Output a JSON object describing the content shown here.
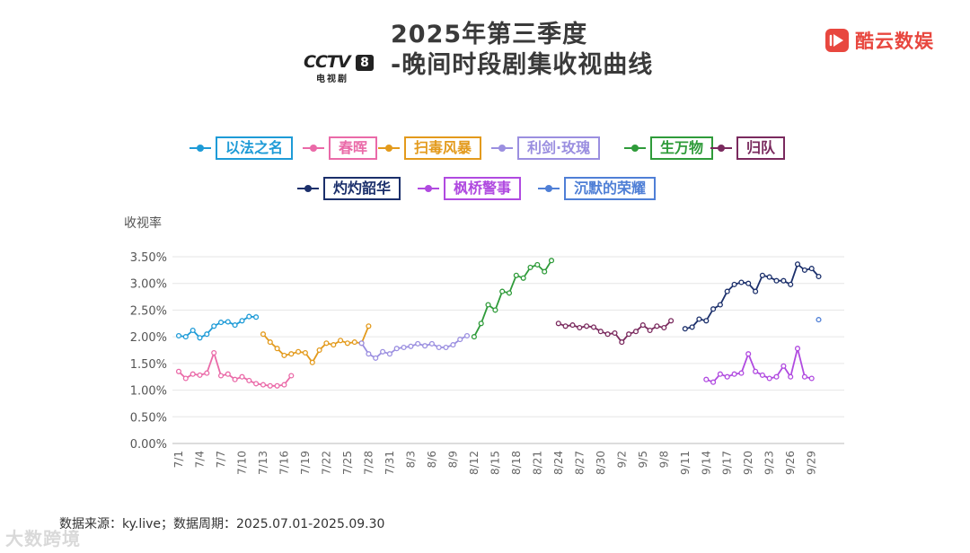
{
  "title": {
    "line1": "2025年第三季度",
    "line2": "-晚间时段剧集收视曲线"
  },
  "cctv_logo": {
    "text": "CCTV",
    "number": "8",
    "sub": "电视剧"
  },
  "brand": {
    "name": "酷云数娱",
    "color": "#e8473f",
    "icon": "play-logo-icon"
  },
  "source_note": "数据来源：ky.live；数据周期：2025.07.01-2025.09.30",
  "watermark": "大数跨境",
  "chart_data": {
    "type": "line",
    "ylabel": "收视率",
    "ylim": [
      0,
      3.5
    ],
    "yticks": [
      "0.00%",
      "0.50%",
      "1.00%",
      "1.50%",
      "2.00%",
      "2.50%",
      "3.00%",
      "3.50%"
    ],
    "xticks": [
      "7/1",
      "7/4",
      "7/7",
      "7/10",
      "7/13",
      "7/16",
      "7/19",
      "7/22",
      "7/25",
      "7/28",
      "7/31",
      "8/3",
      "8/6",
      "8/9",
      "8/12",
      "8/15",
      "8/18",
      "8/21",
      "8/24",
      "8/27",
      "8/30",
      "9/2",
      "9/5",
      "9/8",
      "9/11",
      "9/14",
      "9/17",
      "9/20",
      "9/23",
      "9/26",
      "9/29"
    ],
    "x_start": "2025-07-01",
    "grid": "horizontal",
    "legend_position": "top",
    "series": [
      {
        "name": "以法之名",
        "color": "#1e9bd7",
        "start": "2025-07-01",
        "values": [
          2.02,
          2.0,
          2.12,
          1.98,
          2.05,
          2.2,
          2.27,
          2.28,
          2.22,
          2.3,
          2.38,
          2.37
        ]
      },
      {
        "name": "春晖",
        "color": "#ea6aa8",
        "start": "2025-07-01",
        "values": [
          1.35,
          1.22,
          1.3,
          1.28,
          1.32,
          1.7,
          1.27,
          1.3,
          1.2,
          1.25,
          1.18,
          1.12,
          1.1,
          1.08,
          1.08,
          1.1,
          1.27
        ]
      },
      {
        "name": "扫毒风暴",
        "color": "#e39a1c",
        "start": "2025-07-13",
        "values": [
          2.05,
          1.9,
          1.78,
          1.65,
          1.68,
          1.72,
          1.7,
          1.52,
          1.75,
          1.88,
          1.85,
          1.93,
          1.88,
          1.9,
          1.88,
          2.2
        ]
      },
      {
        "name": "利剑·玫瑰",
        "color": "#9b8fe0",
        "start": "2025-07-27",
        "values": [
          1.88,
          1.68,
          1.6,
          1.72,
          1.68,
          1.78,
          1.8,
          1.82,
          1.87,
          1.83,
          1.87,
          1.8,
          1.8,
          1.85,
          1.95,
          2.02
        ]
      },
      {
        "name": "生万物",
        "color": "#2f9b3a",
        "start": "2025-08-12",
        "values": [
          2.0,
          2.25,
          2.6,
          2.5,
          2.85,
          2.82,
          3.15,
          3.1,
          3.3,
          3.35,
          3.22,
          3.43
        ]
      },
      {
        "name": "归队",
        "color": "#7a2a5e",
        "start": "2025-08-24",
        "values": [
          2.25,
          2.2,
          2.22,
          2.17,
          2.2,
          2.18,
          2.1,
          2.05,
          2.07,
          1.9,
          2.05,
          2.1,
          2.22,
          2.12,
          2.2,
          2.17,
          2.3
        ]
      },
      {
        "name": "灼灼韶华",
        "color": "#1b2f6b",
        "start": "2025-09-11",
        "values": [
          2.15,
          2.18,
          2.33,
          2.3,
          2.52,
          2.6,
          2.85,
          2.98,
          3.02,
          3.0,
          2.85,
          3.15,
          3.12,
          3.05,
          3.05,
          2.98,
          3.36,
          3.25,
          3.28,
          3.13
        ]
      },
      {
        "name": "枫桥警事",
        "color": "#b04ae0",
        "start": "2025-09-14",
        "values": [
          1.2,
          1.15,
          1.3,
          1.25,
          1.3,
          1.32,
          1.68,
          1.35,
          1.28,
          1.22,
          1.25,
          1.45,
          1.25,
          1.78,
          1.25,
          1.22
        ]
      },
      {
        "name": "沉默的荣耀",
        "color": "#4f7fd6",
        "start": "2025-09-30",
        "values": [
          2.32
        ]
      }
    ]
  }
}
